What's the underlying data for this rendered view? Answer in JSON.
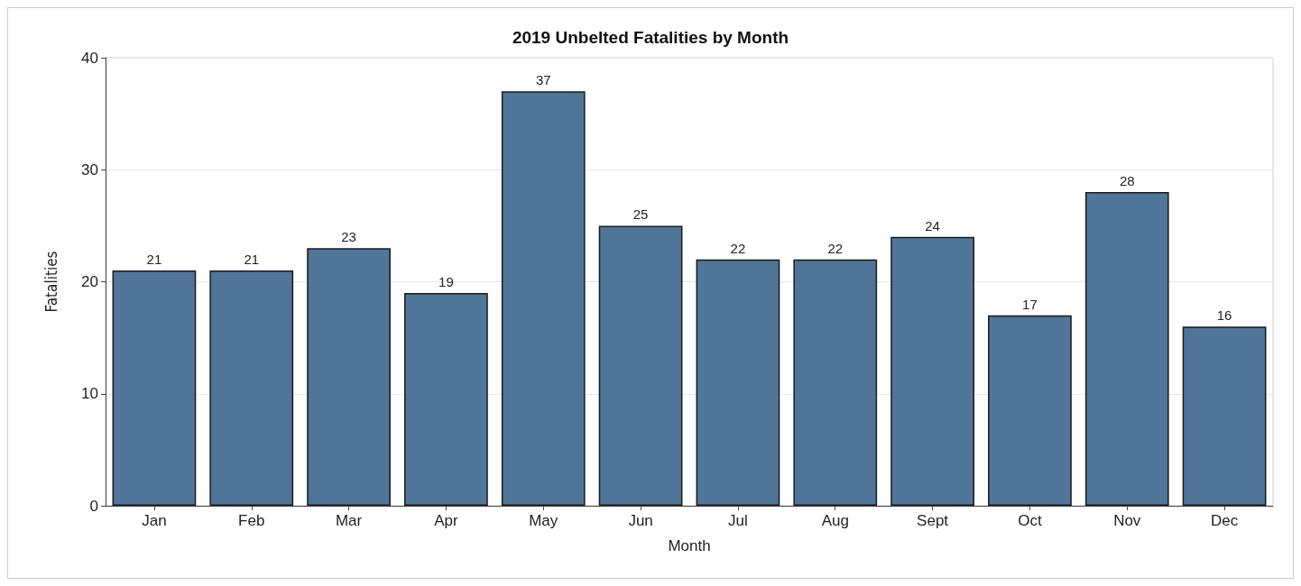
{
  "chart_data": {
    "type": "bar",
    "title": "2019 Unbelted Fatalities by Month",
    "xlabel": "Month",
    "ylabel": "Fatalities",
    "categories": [
      "Jan",
      "Feb",
      "Mar",
      "Apr",
      "May",
      "Jun",
      "Jul",
      "Aug",
      "Sept",
      "Oct",
      "Nov",
      "Dec"
    ],
    "values": [
      21,
      21,
      23,
      19,
      37,
      25,
      22,
      22,
      24,
      17,
      28,
      16
    ],
    "color": "#4f7699",
    "ylim": [
      0,
      40
    ],
    "yticks": [
      0,
      10,
      20,
      30,
      40
    ],
    "grid": "y",
    "data_labels": true
  }
}
